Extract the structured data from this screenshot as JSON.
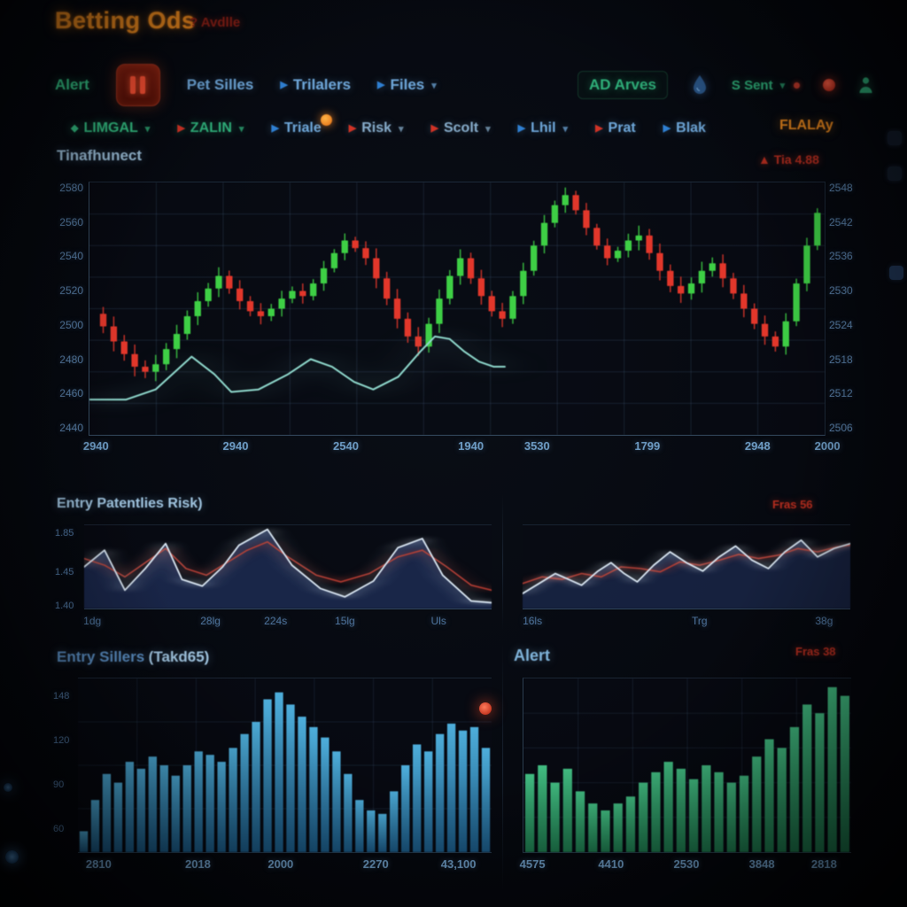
{
  "header": {
    "title": "Betting Ods",
    "tag": "? Avdlle"
  },
  "toolbar_primary": {
    "items": [
      {
        "label": "Alert"
      },
      {
        "label": "Pet Silles"
      },
      {
        "label": "Trilalers",
        "arrow": "▶"
      },
      {
        "label": "Files",
        "arrow": "▶",
        "caret": "▾"
      },
      {
        "label": "AD Arves"
      },
      {
        "label": "S Sent",
        "caret": "▾"
      }
    ],
    "icons": [
      "pause-icon",
      "droplet-icon",
      "record-icon",
      "user-icon"
    ]
  },
  "toolbar_secondary": {
    "items": [
      {
        "prefix": "◆",
        "label": "LIMGAL",
        "caret": "▾"
      },
      {
        "prefix": "▶",
        "label": "ZALIN",
        "caret": "▾"
      },
      {
        "prefix": "▶",
        "label": "Triale"
      },
      {
        "prefix": "▶",
        "label": "Risk",
        "caret": "▾"
      },
      {
        "prefix": "▶",
        "label": "Scolt",
        "caret": "▾"
      },
      {
        "prefix": "▶",
        "label": "Lhil",
        "caret": "▾"
      },
      {
        "prefix": "▶",
        "label": "Prat"
      },
      {
        "prefix": "▶",
        "label": "Blak"
      },
      {
        "label": "FLALAy"
      }
    ]
  },
  "main_panel": {
    "title": "Tinafhunect",
    "alert": "▲ Tia 4.88"
  },
  "mid_left_panel": {
    "title": "Entry Patentlies",
    "accent": "Risk)"
  },
  "mid_right_panel": {
    "accent": "Fras 56"
  },
  "bottom_left_panel": {
    "title": "Entry Sillers",
    "accent": "(Takd65)"
  },
  "bottom_right_panel": {
    "title": "Alert",
    "accent": "Fras 38"
  },
  "theme": {
    "accent_orange": "#e8871e",
    "green": "#2fae79",
    "blue": "#6ea6d8",
    "red": "#c0392b",
    "candle_up": "#3ecf45",
    "candle_down": "#e2372b",
    "signal_teal": "#8fd8cc",
    "bar_blue": "#3fa9d9",
    "bar_green": "#3dbb77"
  },
  "chart_data": [
    {
      "id": "main",
      "type": "candlestick",
      "title": "Tinafhunect",
      "grid": {
        "v": 11,
        "h": 8
      },
      "mids": [
        48,
        43,
        37,
        32,
        27,
        25,
        28,
        34,
        40,
        47,
        53,
        58,
        63,
        58,
        53,
        49,
        47,
        50,
        54,
        57,
        55,
        60,
        66,
        72,
        77,
        74,
        70,
        62,
        54,
        46,
        39,
        35,
        44,
        54,
        63,
        70,
        62,
        55,
        49,
        46,
        55,
        65,
        75,
        84,
        91,
        95,
        89,
        82,
        75,
        70,
        73,
        77,
        79,
        72,
        65,
        59,
        56,
        60,
        65,
        68,
        62,
        56,
        50,
        44,
        39,
        35,
        45,
        60,
        75,
        88
      ],
      "up_color": "#3ecf45",
      "down_color": "#e2372b",
      "overlay_line": {
        "name": "signal",
        "color": "#8fd8cc",
        "points": [
          [
            0,
            14
          ],
          [
            5,
            14
          ],
          [
            9,
            18
          ],
          [
            13.9,
            31
          ],
          [
            17,
            24
          ],
          [
            19.3,
            17
          ],
          [
            23,
            18
          ],
          [
            27,
            24
          ],
          [
            30.1,
            30
          ],
          [
            33,
            27
          ],
          [
            36,
            21
          ],
          [
            38.6,
            18
          ],
          [
            42,
            23
          ],
          [
            45,
            33
          ],
          [
            47,
            39
          ],
          [
            49,
            38
          ],
          [
            51,
            33
          ],
          [
            53,
            29
          ],
          [
            55,
            27
          ],
          [
            56.5,
            27
          ]
        ]
      },
      "y_labels_left": [
        "2580",
        "2560",
        "2540",
        "2520",
        "2500",
        "2480",
        "2460",
        "2440"
      ],
      "y_labels_right": [
        "2548",
        "2542",
        "2536",
        "2530",
        "2524",
        "2518",
        "2512",
        "2506"
      ],
      "x_labels": [
        "2940",
        "2940",
        "2540",
        "1940",
        "3530",
        "1799",
        "2948",
        "2000"
      ],
      "x_label_pos": [
        1,
        20,
        35,
        52,
        61,
        76,
        91,
        100.5
      ]
    },
    {
      "id": "mid_left",
      "type": "line",
      "fill": "rgba(55,85,160,0.38)",
      "series": [
        {
          "name": "risk",
          "color": "#b03a30",
          "width": 1.6,
          "points": [
            [
              0,
              60
            ],
            [
              5,
              52
            ],
            [
              10,
              38
            ],
            [
              15,
              55
            ],
            [
              20,
              72
            ],
            [
              25,
              48
            ],
            [
              30,
              40
            ],
            [
              35,
              55
            ],
            [
              40,
              70
            ],
            [
              45,
              80
            ],
            [
              50,
              62
            ],
            [
              57,
              40
            ],
            [
              63,
              32
            ],
            [
              70,
              42
            ],
            [
              77,
              62
            ],
            [
              83,
              70
            ],
            [
              89,
              50
            ],
            [
              95,
              28
            ],
            [
              100,
              22
            ]
          ]
        },
        {
          "name": "fast",
          "color": "#d9e6f2",
          "width": 1.8,
          "area": true,
          "points": [
            [
              0,
              50
            ],
            [
              5,
              70
            ],
            [
              10,
              22
            ],
            [
              15,
              48
            ],
            [
              20,
              78
            ],
            [
              24,
              35
            ],
            [
              29,
              27
            ],
            [
              34,
              50
            ],
            [
              38,
              76
            ],
            [
              45,
              95
            ],
            [
              51,
              52
            ],
            [
              58,
              24
            ],
            [
              64,
              14
            ],
            [
              71,
              33
            ],
            [
              77,
              73
            ],
            [
              83,
              84
            ],
            [
              88,
              40
            ],
            [
              95,
              9
            ],
            [
              100,
              7
            ]
          ]
        }
      ],
      "y_labels": [
        "1.85",
        "1.45",
        "1.40"
      ],
      "x_labels": [
        "1dg",
        "28lg",
        "224s",
        "15lg",
        "Uls"
      ],
      "x_label_pos": [
        2,
        31,
        47,
        64,
        87
      ]
    },
    {
      "id": "mid_right",
      "type": "line",
      "fill": "rgba(55,85,160,0.32)",
      "series": [
        {
          "name": "risk",
          "color": "#b03a30",
          "width": 1.6,
          "points": [
            [
              0,
              30
            ],
            [
              6,
              38
            ],
            [
              12,
              35
            ],
            [
              18,
              42
            ],
            [
              24,
              38
            ],
            [
              30,
              50
            ],
            [
              36,
              48
            ],
            [
              42,
              44
            ],
            [
              48,
              56
            ],
            [
              54,
              52
            ],
            [
              60,
              58
            ],
            [
              66,
              65
            ],
            [
              72,
              60
            ],
            [
              78,
              64
            ],
            [
              84,
              72
            ],
            [
              90,
              68
            ],
            [
              96,
              74
            ],
            [
              100,
              76
            ]
          ]
        },
        {
          "name": "fast",
          "color": "#d9e6f2",
          "width": 1.8,
          "area": true,
          "points": [
            [
              0,
              18
            ],
            [
              5,
              30
            ],
            [
              10,
              42
            ],
            [
              14,
              35
            ],
            [
              18,
              28
            ],
            [
              23,
              45
            ],
            [
              27,
              55
            ],
            [
              31,
              42
            ],
            [
              35,
              32
            ],
            [
              40,
              52
            ],
            [
              45,
              68
            ],
            [
              50,
              55
            ],
            [
              55,
              45
            ],
            [
              60,
              62
            ],
            [
              65,
              75
            ],
            [
              70,
              58
            ],
            [
              75,
              48
            ],
            [
              80,
              68
            ],
            [
              85,
              82
            ],
            [
              90,
              62
            ],
            [
              95,
              72
            ],
            [
              100,
              78
            ]
          ]
        }
      ],
      "x_labels": [
        "16ls",
        "Trg",
        "38g"
      ],
      "x_label_pos": [
        3,
        54,
        92
      ]
    },
    {
      "id": "bottom_left",
      "type": "bar",
      "grid": {
        "v": 7,
        "h": 4
      },
      "color_top": "#52b7e6",
      "color_bottom": "#1b5a86",
      "values": [
        12,
        30,
        45,
        40,
        52,
        48,
        55,
        50,
        44,
        50,
        58,
        56,
        52,
        60,
        68,
        75,
        88,
        92,
        85,
        78,
        72,
        66,
        58,
        45,
        30,
        24,
        22,
        35,
        50,
        62,
        58,
        68,
        74,
        70,
        72,
        60
      ],
      "y_labels": [
        "148",
        "120",
        "90",
        "60"
      ],
      "x_labels": [
        "2810",
        "2018",
        "2000",
        "2270",
        "43,100"
      ],
      "x_label_pos": [
        5,
        29,
        49,
        72,
        92
      ]
    },
    {
      "id": "bottom_right",
      "type": "bar",
      "grid": {
        "v": 6,
        "h": 5
      },
      "color_top": "#46c98a",
      "color_bottom": "#1e7a4e",
      "values": [
        45,
        50,
        40,
        48,
        35,
        28,
        24,
        28,
        32,
        40,
        46,
        52,
        48,
        42,
        50,
        46,
        40,
        44,
        55,
        65,
        60,
        72,
        85,
        80,
        95,
        90
      ],
      "x_labels": [
        "4575",
        "4410",
        "2530",
        "3848",
        "2818"
      ],
      "x_label_pos": [
        3,
        27,
        50,
        73,
        92
      ]
    }
  ]
}
